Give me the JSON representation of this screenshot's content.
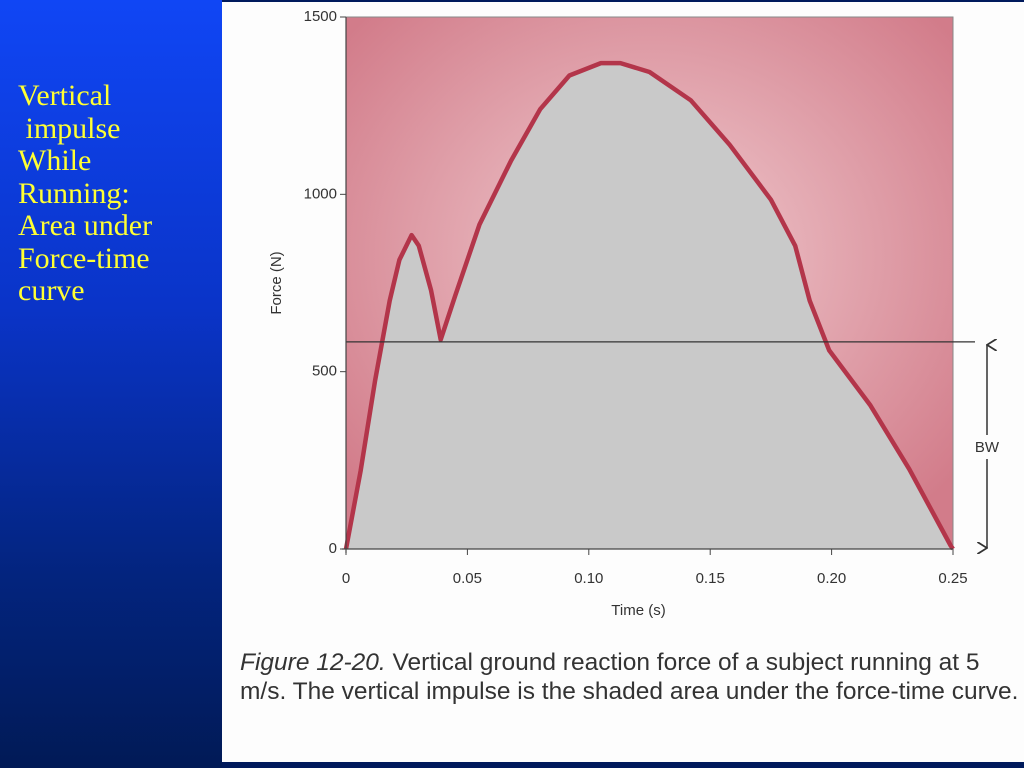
{
  "slide_text": [
    "Vertical",
    " impulse",
    "While",
    "Running:",
    "Area under",
    "Force-time",
    "curve"
  ],
  "chart_data": {
    "type": "line",
    "x_label": "Time (s)",
    "y_label": "Force (N)",
    "x": [
      0,
      0.006,
      0.012,
      0.018,
      0.022,
      0.027,
      0.03,
      0.035,
      0.039,
      0.045,
      0.055,
      0.068,
      0.08,
      0.092,
      0.105,
      0.113,
      0.125,
      0.142,
      0.158,
      0.175,
      0.185,
      0.191,
      0.199,
      0.216,
      0.232,
      0.249,
      0.25
    ],
    "series": [
      {
        "color": "#b3354a",
        "fill": "#c9c9c9",
        "values": [
          0,
          220,
          475,
          700,
          815,
          885,
          855,
          730,
          590,
          715,
          915,
          1095,
          1240,
          1335,
          1370,
          1370,
          1345,
          1265,
          1140,
          985,
          855,
          700,
          560,
          405,
          225,
          10,
          0
        ]
      }
    ],
    "xlim": [
      0,
      0.25
    ],
    "ylim": [
      0,
      1500
    ],
    "xticks": [
      0,
      0.05,
      {
        "value": 0.1,
        "label": "0.10"
      },
      0.15,
      {
        "value": 0.2,
        "label": "0.20"
      },
      0.25
    ],
    "yticks": [
      0,
      500,
      1000,
      1500
    ],
    "reference_line": {
      "value": 584,
      "label": "BW"
    },
    "caption": {
      "figure_label": "Figure 12-20.",
      "text": "Vertical ground reaction force of a subject running at 5 m/s. The vertical impulse is the shaded area under the force-time curve."
    }
  }
}
